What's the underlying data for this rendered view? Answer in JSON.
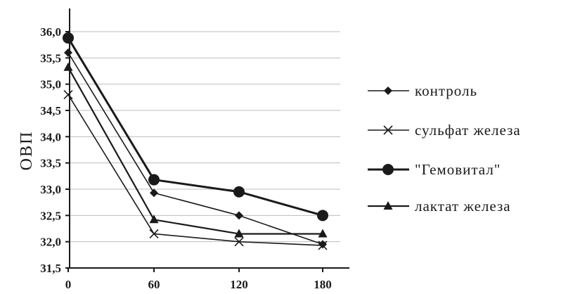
{
  "chart_data": {
    "type": "line",
    "title": "",
    "xlabel": "",
    "ylabel": "ОВП",
    "x": [
      0,
      60,
      120,
      180
    ],
    "x_tick_labels": [
      "0",
      "60",
      "120",
      "180"
    ],
    "ylim": [
      31.5,
      36.0
    ],
    "y_tick_labels": [
      "31,5",
      "32,0",
      "32,5",
      "33,0",
      "33,5",
      "34,0",
      "34,5",
      "35,0",
      "35,5",
      "36,0"
    ],
    "grid": "horizontal",
    "legend_position": "right",
    "series": [
      {
        "name": "контроль",
        "marker": "diamond",
        "values": [
          35.6,
          32.93,
          32.5,
          31.95
        ]
      },
      {
        "name": "сульфат железа",
        "marker": "x",
        "values": [
          34.8,
          32.15,
          32.0,
          31.93
        ]
      },
      {
        "name": "\"Гемовитал\"",
        "marker": "circle",
        "values": [
          35.88,
          33.18,
          32.95,
          32.5
        ]
      },
      {
        "name": "лактат железа",
        "marker": "triangle",
        "values": [
          35.32,
          32.42,
          32.15,
          32.15
        ]
      }
    ]
  }
}
